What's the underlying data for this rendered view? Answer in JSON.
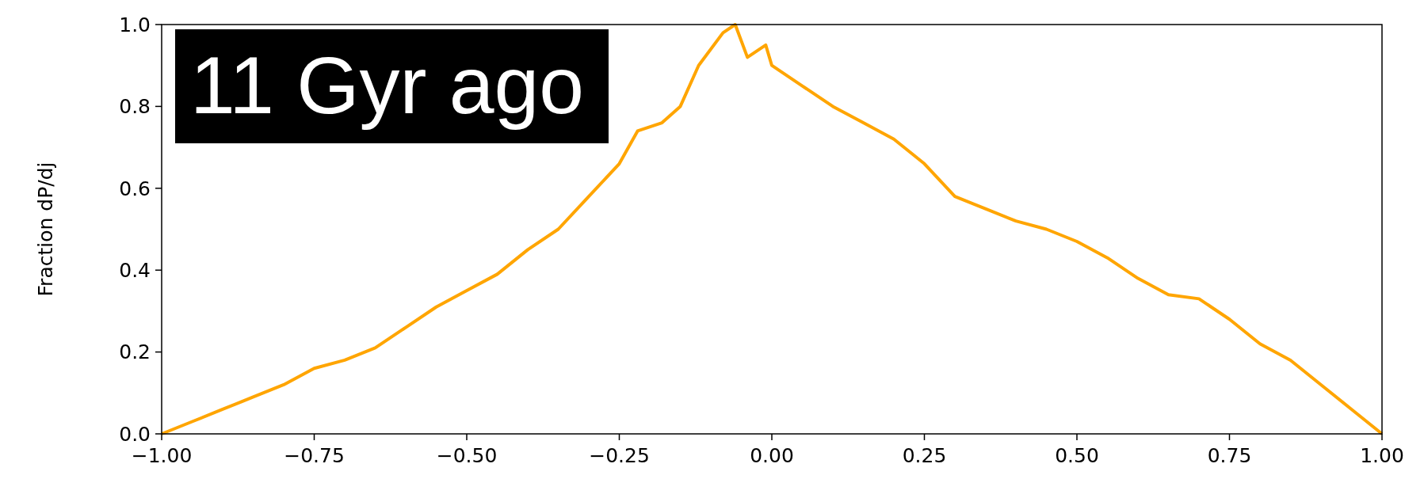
{
  "chart_data": {
    "type": "line",
    "ylabel": "Fraction dP/dj",
    "annotations": [
      "11 Gyr ago"
    ],
    "x": [
      -1.0,
      -0.95,
      -0.9,
      -0.85,
      -0.8,
      -0.75,
      -0.7,
      -0.65,
      -0.6,
      -0.55,
      -0.5,
      -0.45,
      -0.4,
      -0.35,
      -0.3,
      -0.25,
      -0.22,
      -0.18,
      -0.15,
      -0.12,
      -0.08,
      -0.06,
      -0.04,
      -0.01,
      0.0,
      0.05,
      0.1,
      0.15,
      0.2,
      0.25,
      0.3,
      0.35,
      0.4,
      0.45,
      0.5,
      0.55,
      0.6,
      0.65,
      0.7,
      0.75,
      0.8,
      0.85,
      0.9,
      0.95,
      1.0
    ],
    "series": [
      {
        "color": "#ffa500",
        "values": [
          0.0,
          0.03,
          0.06,
          0.09,
          0.12,
          0.16,
          0.18,
          0.21,
          0.26,
          0.31,
          0.35,
          0.39,
          0.45,
          0.5,
          0.58,
          0.66,
          0.74,
          0.76,
          0.8,
          0.9,
          0.98,
          1.0,
          0.92,
          0.95,
          0.9,
          0.85,
          0.8,
          0.76,
          0.72,
          0.66,
          0.58,
          0.55,
          0.52,
          0.5,
          0.47,
          0.43,
          0.38,
          0.34,
          0.33,
          0.28,
          0.22,
          0.18,
          0.12,
          0.06,
          0.0
        ]
      }
    ],
    "xlim": [
      -1,
      1
    ],
    "ylim": [
      0,
      1
    ],
    "xticks": [
      {
        "value": -1,
        "label": "−1.00"
      },
      {
        "value": -0.75,
        "label": "−0.75"
      },
      {
        "value": -0.5,
        "label": "−0.50"
      },
      {
        "value": -0.25,
        "label": "−0.25"
      },
      {
        "value": 0,
        "label": "0.00"
      },
      {
        "value": 0.25,
        "label": "0.25"
      },
      {
        "value": 0.5,
        "label": "0.50"
      },
      {
        "value": 0.75,
        "label": "0.75"
      },
      {
        "value": 1,
        "label": "1.00"
      }
    ],
    "yticks": [
      {
        "value": 0,
        "label": "0.0"
      },
      {
        "value": 0.2,
        "label": "0.2"
      },
      {
        "value": 0.4,
        "label": "0.4"
      },
      {
        "value": 0.6,
        "label": "0.6"
      },
      {
        "value": 0.8,
        "label": "0.8"
      },
      {
        "value": 1,
        "label": "1.0"
      }
    ],
    "grid": false,
    "marker": "none",
    "line_style": "solid"
  }
}
